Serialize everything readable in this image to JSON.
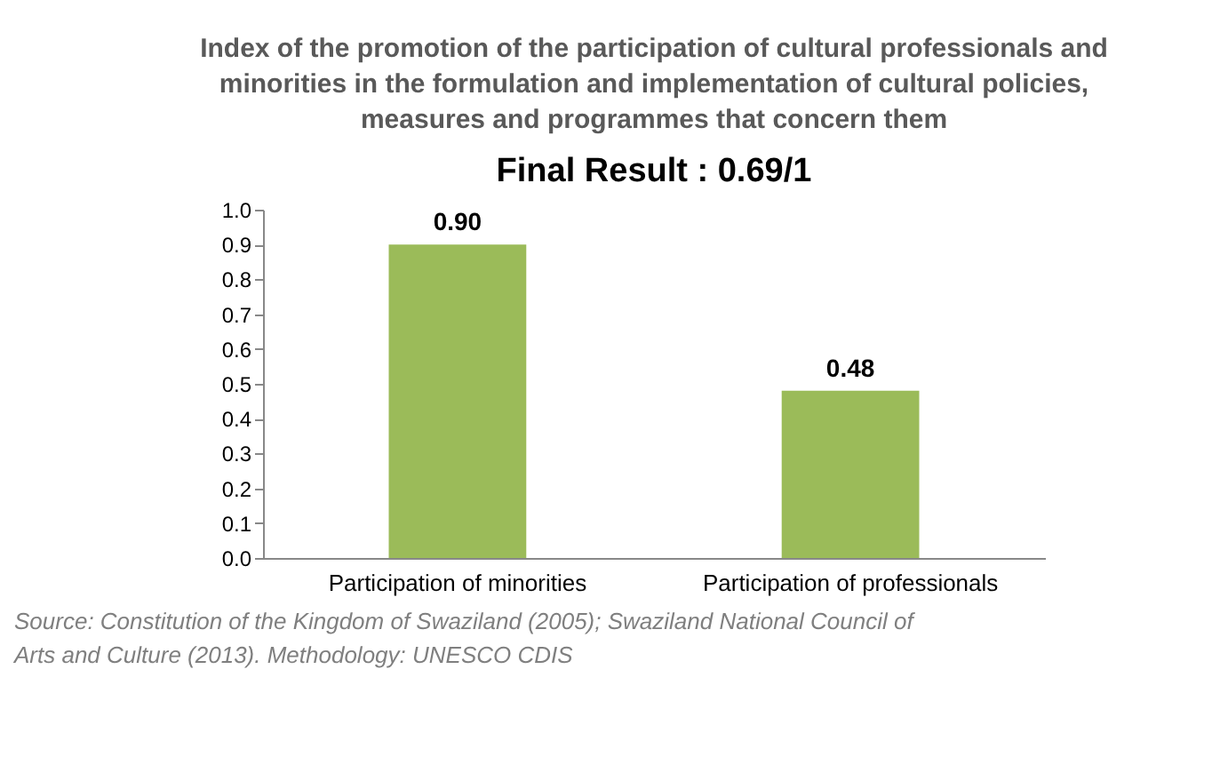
{
  "chart_data": {
    "type": "bar",
    "title": "Index of the promotion of the participation of cultural professionals and minorities in the formulation and implementation of cultural policies, measures and programmes that concern them",
    "subtitle": "Final Result : 0.69/1",
    "categories": [
      "Participation of minorities",
      "Participation of professionals"
    ],
    "values": [
      0.9,
      0.48
    ],
    "color": "#9bbb59",
    "value_labels": [
      "0.90",
      "0.48"
    ],
    "ylim": [
      0,
      1
    ],
    "yticks": [
      {
        "value": 0,
        "label": "0.0"
      },
      {
        "value": 0.1,
        "label": "0.1"
      },
      {
        "value": 0.2,
        "label": "0.2"
      },
      {
        "value": 0.3,
        "label": "0.3"
      },
      {
        "value": 0.4,
        "label": "0.4"
      },
      {
        "value": 0.5,
        "label": "0.5"
      },
      {
        "value": 0.6,
        "label": "0.6"
      },
      {
        "value": 0.7,
        "label": "0.7"
      },
      {
        "value": 0.8,
        "label": "0.8"
      },
      {
        "value": 0.9,
        "label": "0.9"
      },
      {
        "value": 1,
        "label": "1.0"
      }
    ],
    "grid": false,
    "annotations": [
      "Source: Constitution of the Kingdom of Swaziland (2005); Swaziland National Council of Arts and Culture (2013). Methodology: UNESCO CDIS"
    ]
  }
}
